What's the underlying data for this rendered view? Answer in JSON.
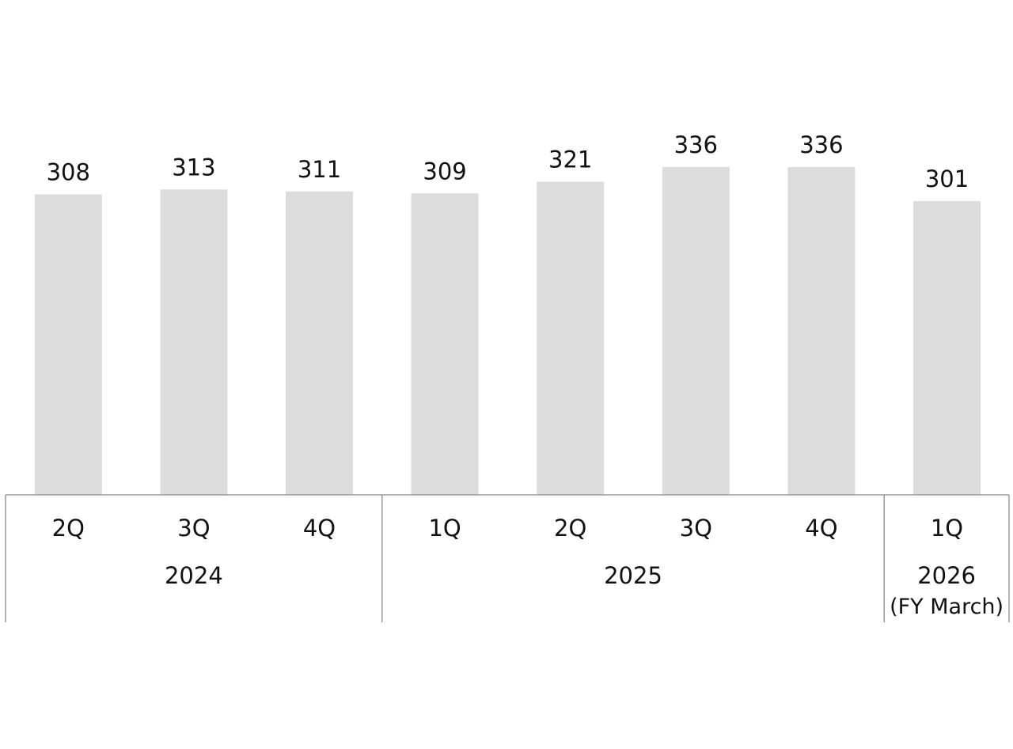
{
  "chart_data": {
    "type": "bar",
    "title": "",
    "xlabel": "",
    "ylabel": "",
    "ylim": [
      0,
      336
    ],
    "grid": false,
    "legend": "none",
    "bar_color": "#dcdcdc",
    "line_color": "#888888",
    "categories": [
      "2Q",
      "3Q",
      "4Q",
      "1Q",
      "2Q",
      "3Q",
      "4Q",
      "1Q"
    ],
    "values": [
      308,
      313,
      311,
      309,
      321,
      336,
      336,
      301
    ],
    "groups": [
      {
        "label": "2024",
        "sublabel": "",
        "count": 3
      },
      {
        "label": "2025",
        "sublabel": "",
        "count": 4
      },
      {
        "label": "2026",
        "sublabel": "(FY March)",
        "count": 1
      }
    ]
  }
}
